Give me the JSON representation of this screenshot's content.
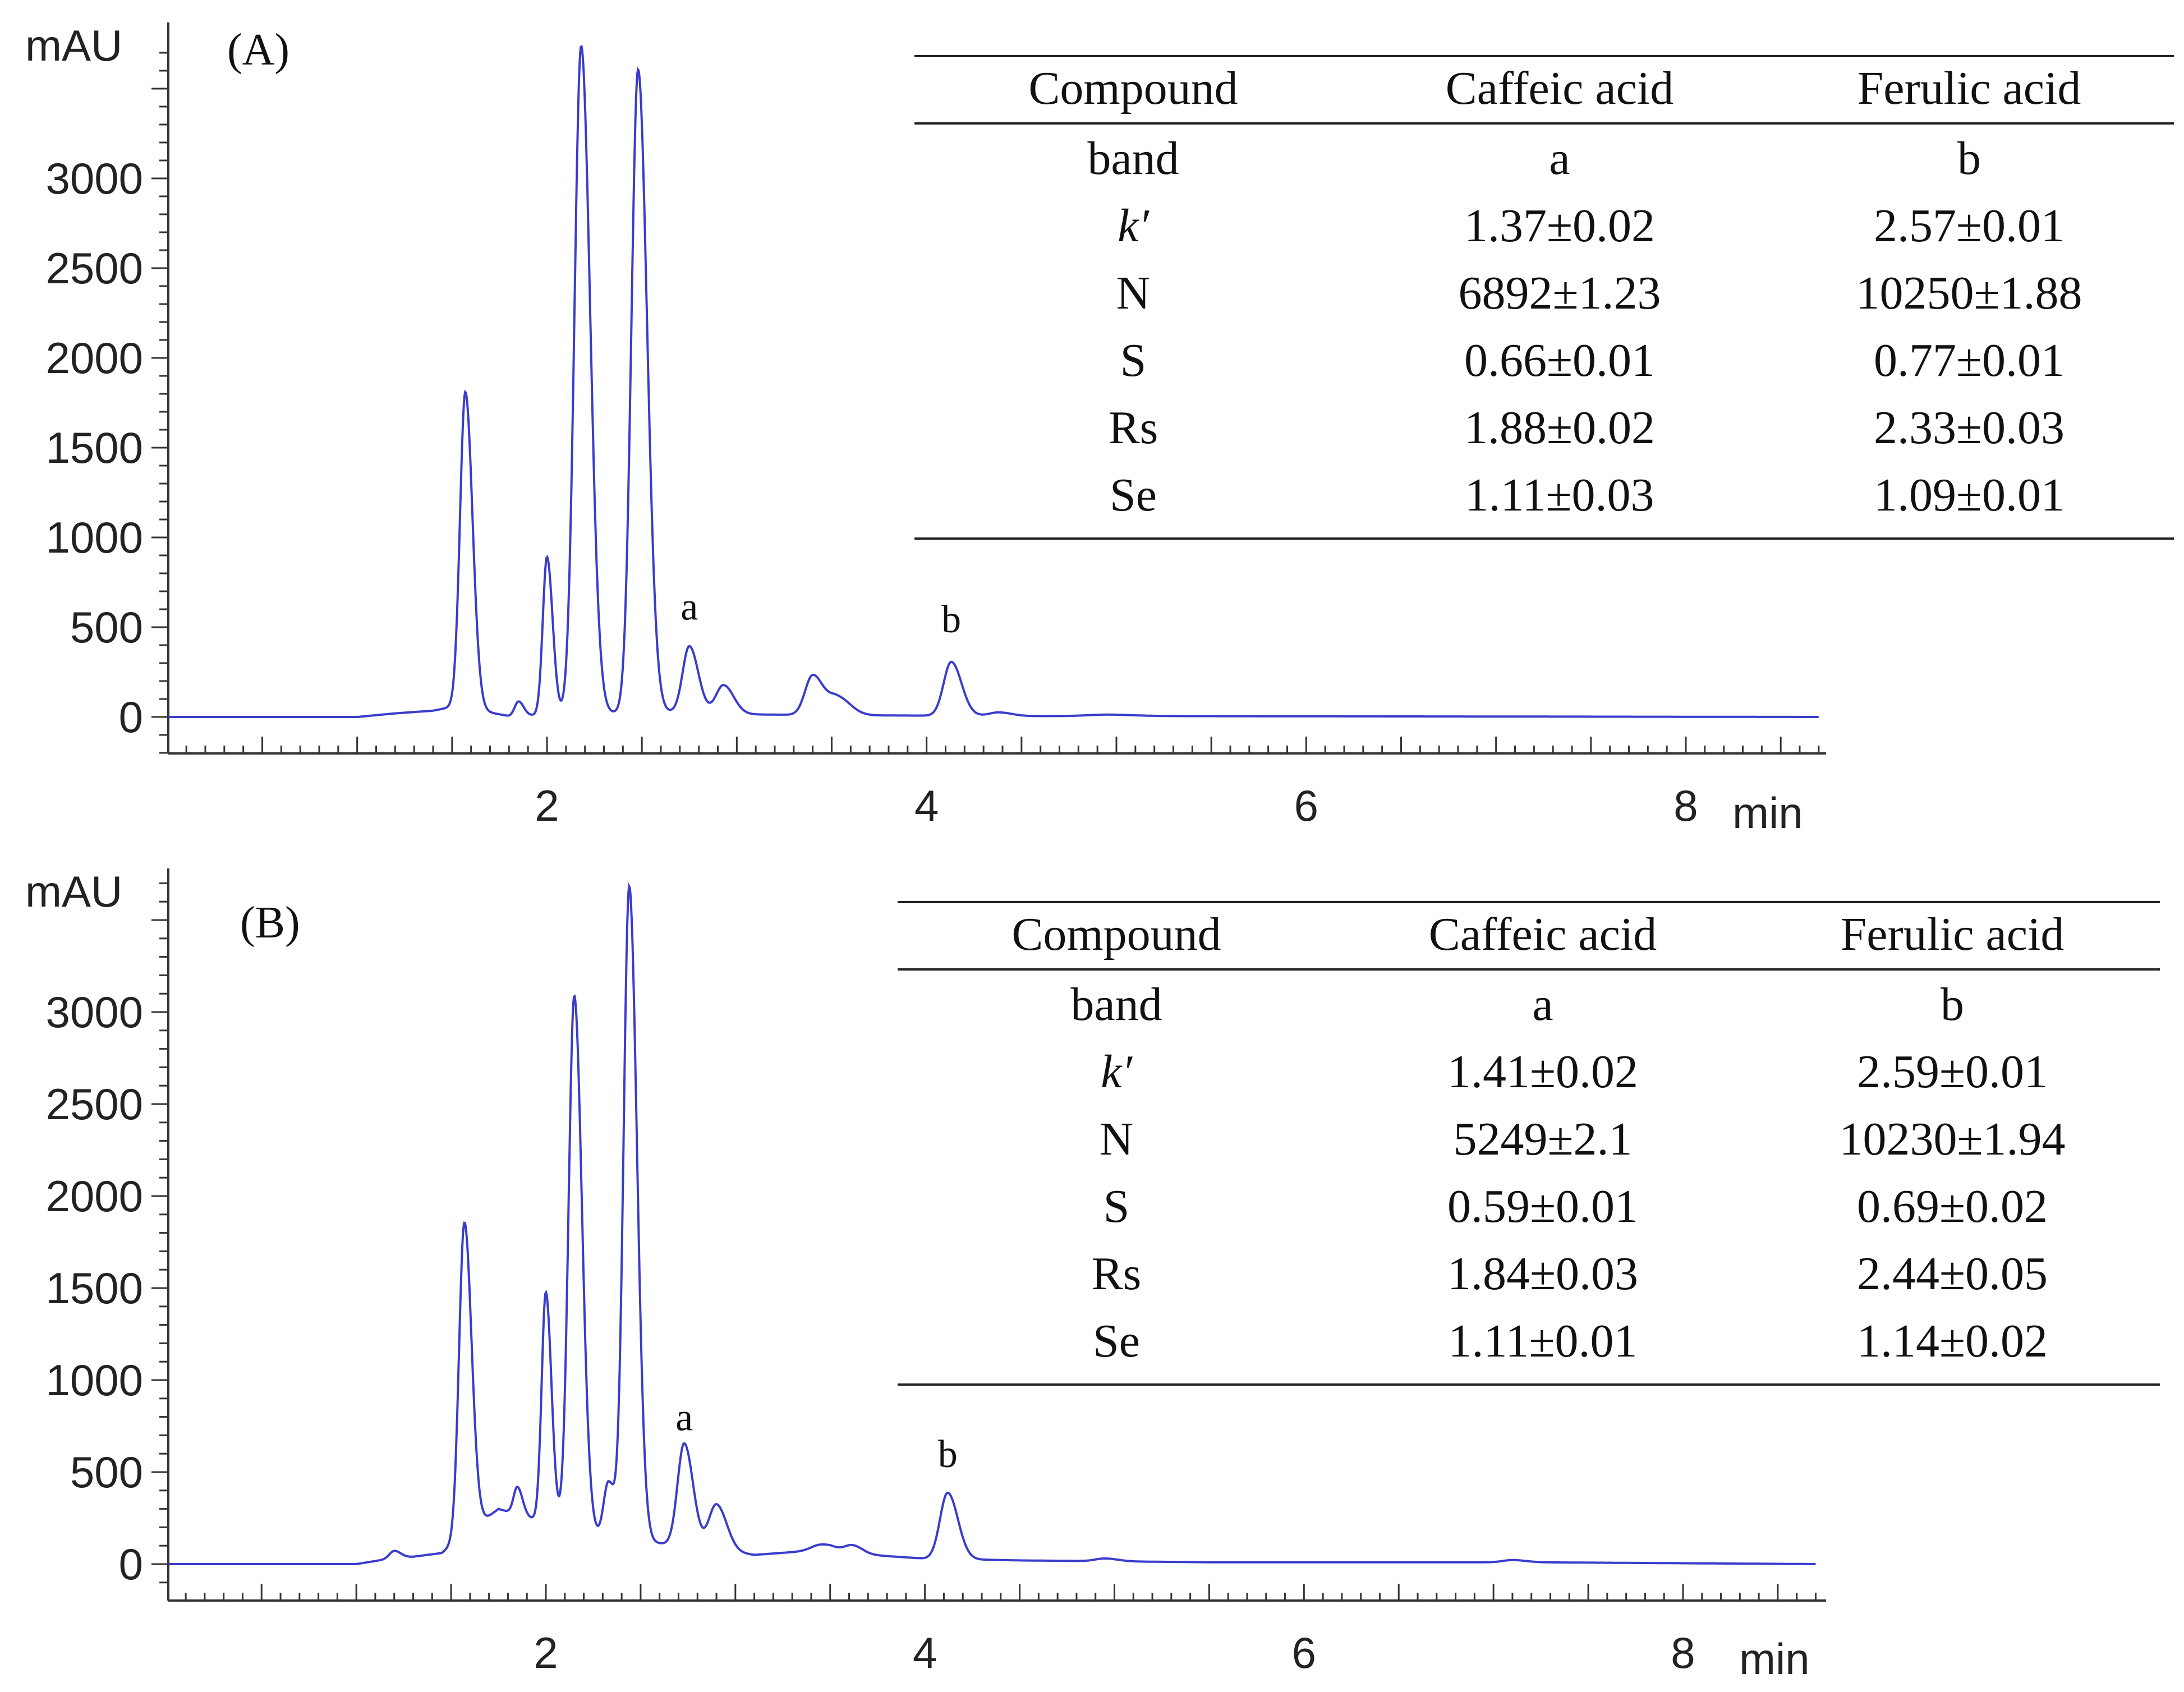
{
  "colors": {
    "trace": "#3a3ccc",
    "axis": "#333333",
    "text": "#111111"
  },
  "chart_data": [
    {
      "type": "line",
      "panel_label": "(A)",
      "ylabel": "mAU",
      "xlabel": "min",
      "xlim": [
        0,
        8.7
      ],
      "ylim": [
        -200,
        3750
      ],
      "xticks": [
        2,
        4,
        6,
        8
      ],
      "yticks": [
        0,
        500,
        1000,
        1500,
        2000,
        2500,
        3000
      ],
      "grid": false,
      "series": [
        {
          "baseline": [
            [
              1.0,
              0
            ],
            [
              1.2,
              20
            ],
            [
              1.4,
              35
            ],
            [
              1.52,
              60
            ],
            [
              1.8,
              5
            ],
            [
              2.6,
              30
            ],
            [
              3.0,
              15
            ],
            [
              3.5,
              10
            ],
            [
              4.5,
              5
            ],
            [
              5.2,
              5
            ],
            [
              8.7,
              0
            ]
          ],
          "peaks": [
            [
              1.57,
              1760,
              0.028
            ],
            [
              1.85,
              80,
              0.02
            ],
            [
              2.0,
              880,
              0.022
            ],
            [
              2.18,
              3720,
              0.035
            ],
            [
              2.48,
              3580,
              0.035
            ],
            [
              2.75,
              370,
              0.035
            ],
            [
              2.93,
              160,
              0.04
            ],
            [
              3.4,
              220,
              0.04
            ],
            [
              3.53,
              100,
              0.05
            ],
            [
              4.13,
              300,
              0.04
            ],
            [
              4.38,
              20,
              0.05
            ],
            [
              4.95,
              8,
              0.1
            ]
          ]
        }
      ],
      "peak_labels": [
        {
          "text": "a",
          "x": 2.75,
          "y": 370
        },
        {
          "text": "b",
          "x": 4.13,
          "y": 300
        }
      ],
      "table": {
        "header": [
          "Compound",
          "Caffeic acid",
          "Ferulic acid"
        ],
        "rows": [
          [
            "band",
            "a",
            "b"
          ],
          [
            "k′",
            "1.37±0.02",
            "2.57±0.01"
          ],
          [
            "N",
            "6892±1.23",
            "10250±1.88"
          ],
          [
            "S",
            "0.66±0.01",
            "0.77±0.01"
          ],
          [
            "Rs",
            "1.88±0.02",
            "2.33±0.03"
          ],
          [
            "Se",
            "1.11±0.03",
            "1.09±0.01"
          ]
        ]
      }
    },
    {
      "type": "line",
      "panel_label": "(B)",
      "ylabel": "mAU",
      "xlabel": "min",
      "xlim": [
        0,
        8.7
      ],
      "ylim": [
        -200,
        3750
      ],
      "xticks": [
        2,
        4,
        6,
        8
      ],
      "yticks": [
        0,
        500,
        1000,
        1500,
        2000,
        2500,
        3000
      ],
      "grid": false,
      "series": [
        {
          "baseline": [
            [
              1.0,
              0
            ],
            [
              1.18,
              30
            ],
            [
              1.3,
              40
            ],
            [
              1.45,
              60
            ],
            [
              1.75,
              300
            ],
            [
              1.95,
              240
            ],
            [
              2.3,
              150
            ],
            [
              2.7,
              100
            ],
            [
              3.1,
              50
            ],
            [
              3.5,
              80
            ],
            [
              3.7,
              50
            ],
            [
              4.0,
              30
            ],
            [
              4.5,
              20
            ],
            [
              5.5,
              10
            ],
            [
              7.2,
              10
            ],
            [
              8.7,
              0
            ]
          ],
          "peaks": [
            [
              1.2,
              40,
              0.025
            ],
            [
              1.57,
              1700,
              0.028
            ],
            [
              1.85,
              150,
              0.02
            ],
            [
              2.0,
              1250,
              0.022
            ],
            [
              2.15,
              2900,
              0.03
            ],
            [
              2.33,
              300,
              0.025
            ],
            [
              2.44,
              3550,
              0.03
            ],
            [
              2.73,
              560,
              0.035
            ],
            [
              2.9,
              250,
              0.04
            ],
            [
              3.45,
              30,
              0.05
            ],
            [
              3.62,
              40,
              0.04
            ],
            [
              4.12,
              360,
              0.04
            ],
            [
              4.95,
              15,
              0.05
            ],
            [
              7.1,
              12,
              0.05
            ]
          ]
        }
      ],
      "peak_labels": [
        {
          "text": "a",
          "x": 2.73,
          "y": 560
        },
        {
          "text": "b",
          "x": 4.12,
          "y": 360
        }
      ],
      "table": {
        "header": [
          "Compound",
          "Caffeic acid",
          "Ferulic acid"
        ],
        "rows": [
          [
            "band",
            "a",
            "b"
          ],
          [
            "k′",
            "1.41±0.02",
            "2.59±0.01"
          ],
          [
            "N",
            "5249±2.1",
            "10230±1.94"
          ],
          [
            "S",
            "0.59±0.01",
            "0.69±0.02"
          ],
          [
            "Rs",
            "1.84±0.03",
            "2.44±0.05"
          ],
          [
            "Se",
            "1.11±0.01",
            "1.14±0.02"
          ]
        ]
      }
    }
  ]
}
